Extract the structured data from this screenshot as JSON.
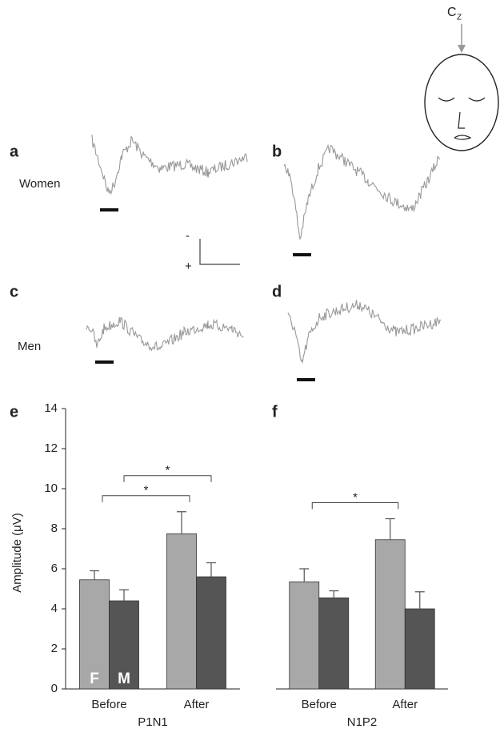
{
  "figure": {
    "panels": [
      "a",
      "b",
      "c",
      "d"
    ],
    "rows": [
      "Women",
      "Men"
    ],
    "electrode": {
      "text": "C",
      "subscript": "Z"
    },
    "scale": [
      "-",
      "+"
    ]
  },
  "chart_data": [
    {
      "type": "bar",
      "label": "e",
      "xlabel": "P1N1",
      "ylabel": "Amplitude (μV)",
      "categories": [
        "Before",
        "After"
      ],
      "series": [
        {
          "name": "F",
          "color": "#a8a8a8",
          "values": [
            5.45,
            7.75
          ],
          "errors": [
            0.45,
            1.1
          ]
        },
        {
          "name": "M",
          "color": "#555555",
          "values": [
            4.4,
            5.6
          ],
          "errors": [
            0.55,
            0.7
          ]
        }
      ],
      "ylim": [
        0,
        14
      ],
      "yticks": [
        0,
        2,
        4,
        6,
        8,
        10,
        12,
        14
      ],
      "annotations": [
        {
          "text": "*",
          "series": 0,
          "categories": [
            0,
            1
          ]
        },
        {
          "text": "*",
          "series": 1,
          "categories": [
            0,
            1
          ]
        }
      ]
    },
    {
      "type": "bar",
      "label": "f",
      "xlabel": "N1P2",
      "categories": [
        "Before",
        "After"
      ],
      "series": [
        {
          "color": "#a8a8a8",
          "values": [
            5.35,
            7.45
          ],
          "errors": [
            0.65,
            1.05
          ]
        },
        {
          "color": "#555555",
          "values": [
            4.55,
            4.0
          ],
          "errors": [
            0.35,
            0.85
          ]
        }
      ],
      "ylim": [
        0,
        14
      ],
      "annotations": [
        {
          "text": "*",
          "series": 0,
          "categories": [
            0,
            1
          ]
        }
      ]
    }
  ]
}
